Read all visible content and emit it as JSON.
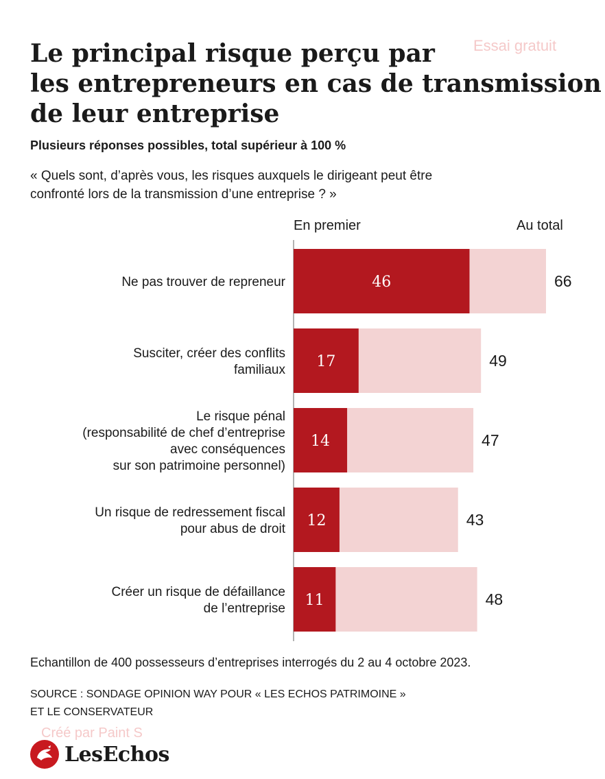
{
  "title_lines": [
    "Le principal risque perçu par",
    "les entrepreneurs en cas de transmission",
    "de leur entreprise"
  ],
  "watermarks": {
    "top": "Essai gratuit",
    "bottom": "Créé par Paint S"
  },
  "subtitle": "Plusieurs réponses possibles, total supérieur à 100 %",
  "question_lines": [
    "« Quels sont, d’après vous, les risques auxquels le dirigeant peut être",
    "confronté lors de la transmission d’une entreprise ? »"
  ],
  "chart_data": {
    "type": "bar",
    "orientation": "horizontal",
    "categories": [
      [
        "Ne pas trouver de repreneur"
      ],
      [
        "Susciter, créer des conflits",
        "familiaux"
      ],
      [
        "Le risque pénal",
        "(responsabilité de chef d’entreprise",
        "avec conséquences",
        "sur son patrimoine personnel)"
      ],
      [
        "Un risque de redressement fiscal",
        "pour abus de droit"
      ],
      [
        "Créer un risque de défaillance",
        "de l’entreprise"
      ]
    ],
    "series": [
      {
        "name": "En premier",
        "values": [
          46,
          17,
          14,
          12,
          11
        ],
        "color": "#b3181f"
      },
      {
        "name": "Au total",
        "values": [
          66,
          49,
          47,
          43,
          48
        ],
        "color": "#f3d3d3"
      }
    ],
    "xlim": [
      0,
      66
    ],
    "grid": false
  },
  "note": "Echantillon de 400 possesseurs d’entreprises interrogés du 2 au 4 octobre 2023.",
  "source_lines": [
    "SOURCE : SONDAGE OPINION WAY POUR « LES ECHOS PATRIMOINE »",
    "ET LE CONSERVATEUR"
  ],
  "logo": {
    "text": "LesEchos",
    "icon": "les-echos-rooster-icon",
    "color": "#c8191f"
  }
}
